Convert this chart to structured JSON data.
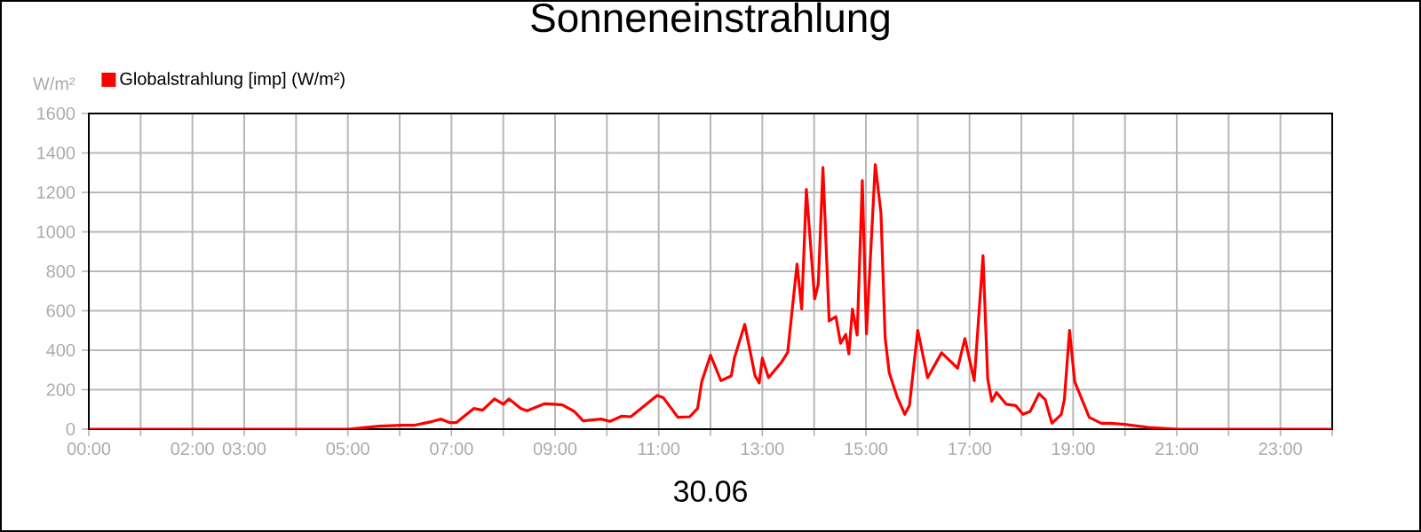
{
  "chart_data": {
    "type": "line",
    "title": "Sonneneinstrahlung",
    "xlabel": "30.06",
    "ylabel": "W/m²",
    "xlim": [
      0,
      24
    ],
    "ylim": [
      0,
      1600
    ],
    "xticks": [
      {
        "value": 0,
        "label": "00:00"
      },
      {
        "value": 1,
        "label": null
      },
      {
        "value": 2,
        "label": "02:00"
      },
      {
        "value": 3,
        "label": "03:00"
      },
      {
        "value": 4,
        "label": null
      },
      {
        "value": 5,
        "label": "05:00"
      },
      {
        "value": 6,
        "label": null
      },
      {
        "value": 7,
        "label": "07:00"
      },
      {
        "value": 8,
        "label": null
      },
      {
        "value": 9,
        "label": "09:00"
      },
      {
        "value": 10,
        "label": null
      },
      {
        "value": 11,
        "label": "11:00"
      },
      {
        "value": 12,
        "label": null
      },
      {
        "value": 13,
        "label": "13:00"
      },
      {
        "value": 14,
        "label": null
      },
      {
        "value": 15,
        "label": "15:00"
      },
      {
        "value": 16,
        "label": null
      },
      {
        "value": 17,
        "label": "17:00"
      },
      {
        "value": 18,
        "label": null
      },
      {
        "value": 19,
        "label": "19:00"
      },
      {
        "value": 20,
        "label": null
      },
      {
        "value": 21,
        "label": "21:00"
      },
      {
        "value": 22,
        "label": null
      },
      {
        "value": 23,
        "label": "23:00"
      },
      {
        "value": 24,
        "label": null
      }
    ],
    "yticks": [
      0,
      200,
      400,
      600,
      800,
      1000,
      1200,
      1400,
      1600
    ],
    "grid": true,
    "legend": "top left",
    "series": [
      {
        "name": "Globalstrahlung [imp] (W/m²)",
        "color": "#ff0000",
        "x": [
          0,
          5.0,
          5.6,
          6.06,
          6.29,
          6.63,
          6.8,
          6.97,
          7.09,
          7.43,
          7.6,
          7.83,
          8.0,
          8.11,
          8.34,
          8.46,
          8.8,
          8.97,
          9.14,
          9.37,
          9.54,
          9.89,
          10.06,
          10.29,
          10.46,
          10.69,
          10.97,
          11.09,
          11.37,
          11.6,
          11.75,
          11.83,
          12.0,
          12.2,
          12.4,
          12.46,
          12.66,
          12.86,
          12.94,
          13.0,
          13.12,
          13.37,
          13.49,
          13.67,
          13.76,
          13.85,
          14.01,
          14.08,
          14.17,
          14.29,
          14.42,
          14.51,
          14.61,
          14.67,
          14.74,
          14.83,
          14.93,
          15.01,
          15.18,
          15.29,
          15.37,
          15.45,
          15.6,
          15.75,
          15.84,
          16.0,
          16.19,
          16.46,
          16.77,
          16.91,
          17.09,
          17.26,
          17.35,
          17.43,
          17.52,
          17.71,
          17.89,
          18.03,
          18.17,
          18.34,
          18.46,
          18.59,
          18.77,
          18.83,
          18.93,
          19.03,
          19.31,
          19.54,
          19.71,
          20.0,
          20.46,
          21.03,
          24
        ],
        "values": [
          0,
          0,
          15,
          20,
          20,
          39,
          51,
          33,
          33,
          105,
          96,
          153,
          126,
          153,
          105,
          93,
          129,
          126,
          123,
          90,
          42,
          51,
          39,
          66,
          63,
          111,
          171,
          159,
          60,
          63,
          105,
          240,
          375,
          246,
          270,
          360,
          531,
          270,
          234,
          360,
          261,
          339,
          390,
          837,
          609,
          1215,
          660,
          735,
          1326,
          549,
          570,
          435,
          480,
          381,
          609,
          477,
          1260,
          483,
          1341,
          1095,
          465,
          285,
          165,
          75,
          120,
          501,
          261,
          387,
          309,
          459,
          246,
          879,
          255,
          141,
          186,
          126,
          120,
          75,
          90,
          180,
          150,
          30,
          75,
          150,
          501,
          240,
          60,
          30,
          30,
          24,
          9,
          0,
          0
        ]
      }
    ]
  }
}
